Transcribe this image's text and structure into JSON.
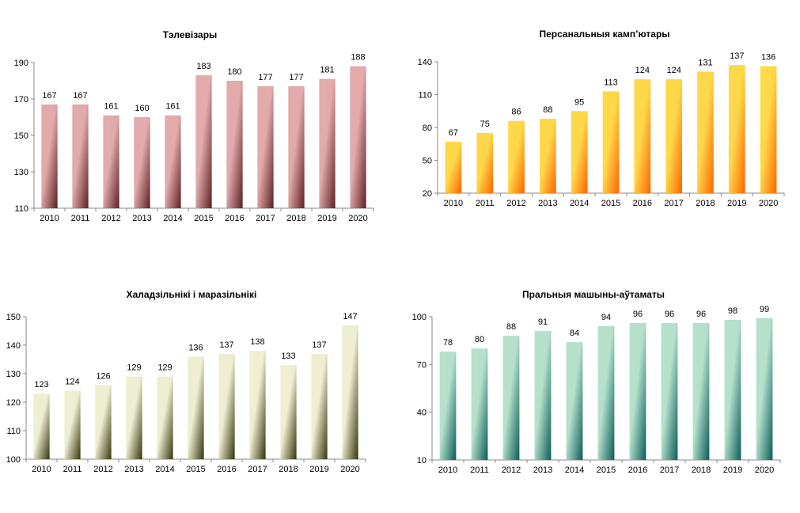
{
  "chart_data": [
    {
      "type": "bar",
      "title": "Тэлевізары",
      "categories": [
        "2010",
        "2011",
        "2012",
        "2013",
        "2014",
        "2015",
        "2016",
        "2017",
        "2018",
        "2019",
        "2020"
      ],
      "values": [
        167,
        167,
        161,
        160,
        161,
        183,
        180,
        177,
        177,
        181,
        188
      ],
      "yticks": [
        110,
        130,
        150,
        170,
        190
      ],
      "ylim": [
        110,
        190
      ],
      "colors": [
        "#e2aaaa",
        "#5c1f22"
      ],
      "xlabel": "",
      "ylabel": "",
      "grid": false
    },
    {
      "type": "bar",
      "title": "Персанальныя  камп’ютары",
      "categories": [
        "2010",
        "2011",
        "2012",
        "2013",
        "2014",
        "2015",
        "2016",
        "2017",
        "2018",
        "2019",
        "2020"
      ],
      "values": [
        67,
        75,
        86,
        88,
        95,
        113,
        124,
        124,
        131,
        137,
        136
      ],
      "yticks": [
        20,
        50,
        80,
        110,
        140
      ],
      "ylim": [
        20,
        140
      ],
      "colors": [
        "#ffd84a",
        "#ff6400"
      ],
      "xlabel": "",
      "ylabel": "",
      "grid": false
    },
    {
      "type": "bar",
      "title": "Халадзільнікі і маразільнікі",
      "categories": [
        "2010",
        "2011",
        "2012",
        "2013",
        "2014",
        "2015",
        "2016",
        "2017",
        "2018",
        "2019",
        "2020"
      ],
      "values": [
        123,
        124,
        126,
        129,
        129,
        136,
        137,
        138,
        133,
        137,
        147
      ],
      "yticks": [
        100,
        110,
        120,
        130,
        140,
        150
      ],
      "ylim": [
        100,
        150
      ],
      "colors": [
        "#eeeed2",
        "#34340c"
      ],
      "xlabel": "",
      "ylabel": "",
      "grid": false
    },
    {
      "type": "bar",
      "title": "Пральныя  машыны-аўтаматы",
      "categories": [
        "2010",
        "2011",
        "2012",
        "2013",
        "2014",
        "2015",
        "2016",
        "2017",
        "2018",
        "2019",
        "2020"
      ],
      "values": [
        78,
        80,
        88,
        91,
        84,
        94,
        96,
        96,
        96,
        98,
        99
      ],
      "yticks": [
        10,
        40,
        70,
        100
      ],
      "ylim": [
        10,
        100
      ],
      "colors": [
        "#b4e0cc",
        "#0b5c56"
      ],
      "xlabel": "",
      "ylabel": "",
      "grid": false
    }
  ]
}
